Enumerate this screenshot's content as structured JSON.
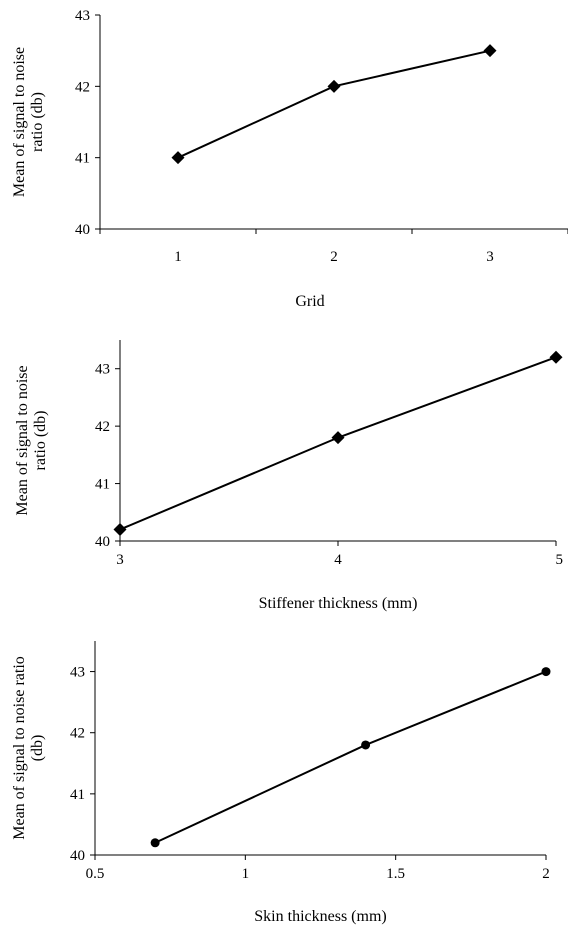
{
  "chart_data": [
    {
      "type": "line",
      "x_categorical": true,
      "categories": [
        "1",
        "2",
        "3"
      ],
      "x": [
        1,
        2,
        3
      ],
      "xlim": [
        0.5,
        3.5
      ],
      "y": [
        41,
        42,
        42.5
      ],
      "ylim": [
        40,
        43
      ],
      "yticks": [
        "40",
        "41",
        "42",
        "43"
      ],
      "xlabel": "Grid",
      "ylabel": "Mean of signal to noise ratio (db)",
      "ylabel_lines": [
        "Mean of signal to noise",
        "ratio (db)"
      ],
      "marker": "diamond",
      "grid": false
    },
    {
      "type": "line",
      "x": [
        3,
        4,
        5
      ],
      "xlim": [
        3,
        5
      ],
      "xticks": [
        "3",
        "4",
        "5"
      ],
      "y": [
        40.2,
        41.8,
        43.2
      ],
      "ylim": [
        40,
        43.5
      ],
      "yticks": [
        "40",
        "41",
        "42",
        "43"
      ],
      "xlabel": "Stiffener thickness (mm)",
      "ylabel": "Mean of signal to noise ratio (db)",
      "ylabel_lines": [
        "Mean of signal to noise",
        "ratio (db)"
      ],
      "marker": "diamond",
      "grid": false
    },
    {
      "type": "line",
      "x": [
        0.7,
        1.4,
        2
      ],
      "xlim": [
        0.5,
        2
      ],
      "xticks": [
        "0.5",
        "1",
        "1.5",
        "2"
      ],
      "y": [
        40.2,
        41.8,
        43
      ],
      "ylim": [
        40,
        43.5
      ],
      "yticks": [
        "40",
        "41",
        "42",
        "43"
      ],
      "xlabel": "Skin thickness (mm)",
      "ylabel": "Mean of signal to noise ratio (db)",
      "ylabel_lines": [
        "Mean of signal to noise ratio",
        "(db)"
      ],
      "marker": "circle",
      "grid": false
    }
  ]
}
